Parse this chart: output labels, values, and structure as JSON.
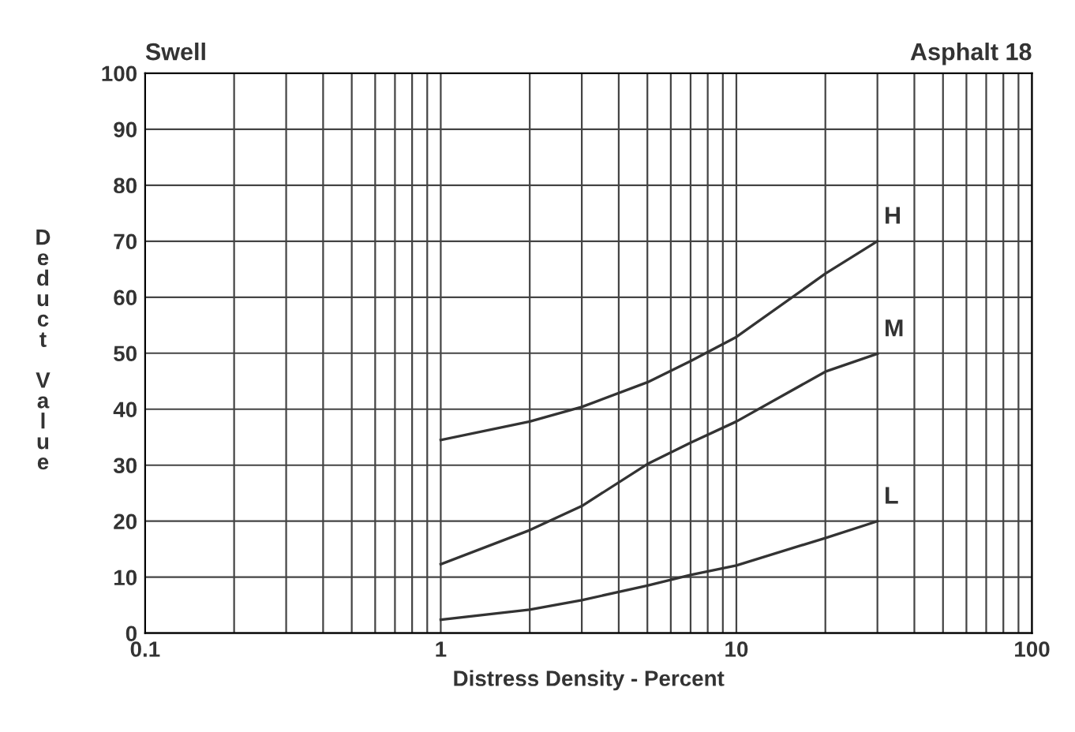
{
  "chart_data": {
    "type": "line",
    "title": "Swell",
    "subtitle": "Asphalt 18",
    "xlabel": "Distress Density - Percent",
    "ylabel": "Deduct Value",
    "log": "x",
    "grid": true,
    "legend": false,
    "marker": "none",
    "line_style": "solid",
    "xlim": [
      0.1,
      100
    ],
    "ylim": [
      0,
      100
    ],
    "xticks": [
      0.1,
      {
        "value": 0.2,
        "label": null
      },
      {
        "value": 0.3,
        "label": null
      },
      {
        "value": 0.4,
        "label": null
      },
      {
        "value": 0.5,
        "label": null
      },
      {
        "value": 0.6,
        "label": null
      },
      {
        "value": 0.7,
        "label": null
      },
      {
        "value": 0.8,
        "label": null
      },
      {
        "value": 0.9,
        "label": null
      },
      1,
      {
        "value": 2,
        "label": null
      },
      {
        "value": 3,
        "label": null
      },
      {
        "value": 4,
        "label": null
      },
      {
        "value": 5,
        "label": null
      },
      {
        "value": 6,
        "label": null
      },
      {
        "value": 7,
        "label": null
      },
      {
        "value": 8,
        "label": null
      },
      {
        "value": 9,
        "label": null
      },
      10,
      {
        "value": 20,
        "label": null
      },
      {
        "value": 30,
        "label": null
      },
      {
        "value": 40,
        "label": null
      },
      {
        "value": 50,
        "label": null
      },
      {
        "value": 60,
        "label": null
      },
      {
        "value": 70,
        "label": null
      },
      {
        "value": 80,
        "label": null
      },
      {
        "value": 90,
        "label": null
      },
      100
    ],
    "yticks": [
      0,
      10,
      20,
      30,
      40,
      50,
      60,
      70,
      80,
      90,
      100
    ],
    "x": [
      1,
      2,
      3,
      5,
      7,
      10,
      20,
      30
    ],
    "series": [
      {
        "name": "H",
        "color": "#333333",
        "values": [
          34.5,
          37.8,
          40.4,
          44.8,
          48.6,
          52.9,
          64.2,
          70
        ]
      },
      {
        "name": "M",
        "color": "#333333",
        "values": [
          12.3,
          18.4,
          22.7,
          30.2,
          34,
          37.8,
          46.7,
          49.9
        ]
      },
      {
        "name": "L",
        "color": "#333333",
        "values": [
          2.4,
          4.2,
          5.9,
          8.5,
          10.4,
          12.1,
          17,
          20
        ]
      }
    ]
  }
}
